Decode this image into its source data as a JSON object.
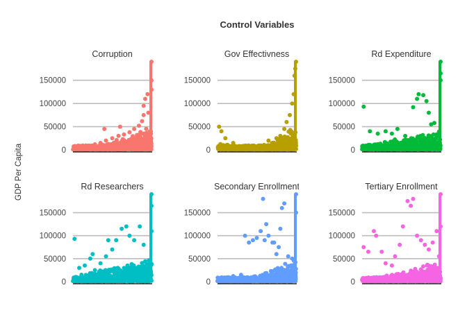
{
  "chart_data": {
    "type": "scatter",
    "title": "Control Variables",
    "ylabel": "GDP Per Capita",
    "xlabel": "",
    "ylim": [
      0,
      190000
    ],
    "yticks": [
      0,
      50000,
      100000,
      150000
    ],
    "ytick_labels": [
      "0",
      "50000",
      "100000",
      "150000"
    ],
    "grid": "horizontal",
    "legend": "none",
    "facets": [
      {
        "name": "Corruption",
        "color": "#F8766D",
        "pattern": "corr",
        "points": [
          [
            0.05,
            2000
          ],
          [
            0.12,
            5000
          ],
          [
            0.2,
            9000
          ],
          [
            0.28,
            12000
          ],
          [
            0.35,
            15000
          ],
          [
            0.42,
            20000
          ],
          [
            0.5,
            25000
          ],
          [
            0.58,
            30000
          ],
          [
            0.65,
            33000
          ],
          [
            0.72,
            38000
          ],
          [
            0.78,
            45000
          ],
          [
            0.84,
            52000
          ],
          [
            0.88,
            62000
          ],
          [
            0.9,
            75000
          ],
          [
            0.9,
            95000
          ],
          [
            0.92,
            110000
          ],
          [
            0.95,
            120000
          ],
          [
            0.96,
            80000
          ],
          [
            0.4,
            45000
          ],
          [
            0.6,
            50000
          ],
          [
            0.98,
            40000
          ],
          [
            1.0,
            190000
          ],
          [
            1.0,
            150000
          ],
          [
            1.0,
            130000
          ],
          [
            0.8,
            4000
          ],
          [
            0.93,
            3000
          ]
        ]
      },
      {
        "name": "Gov Effectivness",
        "color": "#B79F00",
        "pattern": "gov",
        "points": [
          [
            0.02,
            50000
          ],
          [
            0.05,
            40000
          ],
          [
            0.1,
            25000
          ],
          [
            0.2,
            15000
          ],
          [
            0.3,
            8000
          ],
          [
            0.4,
            5000
          ],
          [
            0.5,
            5000
          ],
          [
            0.6,
            8000
          ],
          [
            0.7,
            15000
          ],
          [
            0.8,
            30000
          ],
          [
            0.85,
            45000
          ],
          [
            0.88,
            60000
          ],
          [
            0.92,
            75000
          ],
          [
            0.95,
            100000
          ],
          [
            0.97,
            120000
          ],
          [
            0.98,
            160000
          ],
          [
            1.0,
            190000
          ],
          [
            0.99,
            175000
          ],
          [
            0.65,
            20000
          ],
          [
            0.75,
            25000
          ]
        ]
      },
      {
        "name": "Rd Expenditure",
        "color": "#00BA38",
        "pattern": "rdexp",
        "points": [
          [
            0.02,
            93000
          ],
          [
            0.1,
            40000
          ],
          [
            0.2,
            35000
          ],
          [
            0.3,
            40000
          ],
          [
            0.38,
            35000
          ],
          [
            0.45,
            45000
          ],
          [
            0.55,
            30000
          ],
          [
            0.65,
            92000
          ],
          [
            0.7,
            110000
          ],
          [
            0.72,
            120000
          ],
          [
            0.78,
            118000
          ],
          [
            0.82,
            105000
          ],
          [
            0.85,
            80000
          ],
          [
            0.88,
            55000
          ],
          [
            0.92,
            58000
          ],
          [
            1.0,
            190000
          ],
          [
            1.0,
            165000
          ],
          [
            1.0,
            150000
          ],
          [
            0.3,
            10000
          ],
          [
            0.6,
            8000
          ]
        ]
      },
      {
        "name": "Rd Researchers",
        "color": "#00BFC4",
        "pattern": "rdres",
        "points": [
          [
            0.02,
            93000
          ],
          [
            0.08,
            30000
          ],
          [
            0.15,
            35000
          ],
          [
            0.22,
            50000
          ],
          [
            0.28,
            25000
          ],
          [
            0.35,
            40000
          ],
          [
            0.42,
            55000
          ],
          [
            0.5,
            70000
          ],
          [
            0.55,
            90000
          ],
          [
            0.62,
            115000
          ],
          [
            0.68,
            120000
          ],
          [
            0.72,
            100000
          ],
          [
            0.78,
            90000
          ],
          [
            0.85,
            120000
          ],
          [
            0.9,
            80000
          ],
          [
            1.0,
            190000
          ],
          [
            1.0,
            165000
          ],
          [
            1.0,
            110000
          ],
          [
            0.25,
            60000
          ],
          [
            0.45,
            90000
          ]
        ]
      },
      {
        "name": "Secondary Enrollment",
        "color": "#619CFF",
        "pattern": "sec",
        "points": [
          [
            0.02,
            5000
          ],
          [
            0.1,
            8000
          ],
          [
            0.2,
            12000
          ],
          [
            0.3,
            15000
          ],
          [
            0.35,
            100000
          ],
          [
            0.4,
            85000
          ],
          [
            0.45,
            90000
          ],
          [
            0.5,
            95000
          ],
          [
            0.55,
            110000
          ],
          [
            0.6,
            90000
          ],
          [
            0.62,
            125000
          ],
          [
            0.65,
            100000
          ],
          [
            0.7,
            85000
          ],
          [
            0.75,
            60000
          ],
          [
            0.78,
            75000
          ],
          [
            0.8,
            115000
          ],
          [
            0.82,
            160000
          ],
          [
            0.85,
            170000
          ],
          [
            0.58,
            180000
          ],
          [
            0.72,
            85000
          ],
          [
            0.9,
            55000
          ],
          [
            1.0,
            190000
          ],
          [
            1.0,
            150000
          ],
          [
            0.95,
            50000
          ]
        ]
      },
      {
        "name": "Tertiary Enrollment",
        "color": "#F564E3",
        "pattern": "ter",
        "points": [
          [
            0.02,
            75000
          ],
          [
            0.08,
            65000
          ],
          [
            0.15,
            110000
          ],
          [
            0.18,
            100000
          ],
          [
            0.25,
            65000
          ],
          [
            0.3,
            40000
          ],
          [
            0.38,
            35000
          ],
          [
            0.42,
            55000
          ],
          [
            0.48,
            80000
          ],
          [
            0.52,
            120000
          ],
          [
            0.58,
            175000
          ],
          [
            0.62,
            165000
          ],
          [
            0.65,
            180000
          ],
          [
            0.7,
            100000
          ],
          [
            0.75,
            90000
          ],
          [
            0.8,
            80000
          ],
          [
            0.85,
            70000
          ],
          [
            0.9,
            85000
          ],
          [
            0.95,
            110000
          ],
          [
            1.0,
            190000
          ],
          [
            1.0,
            120000
          ],
          [
            0.98,
            55000
          ]
        ]
      }
    ]
  }
}
